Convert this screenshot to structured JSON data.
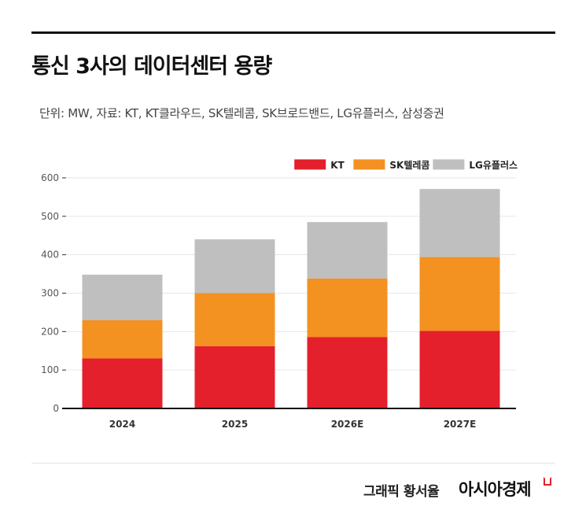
{
  "header": {
    "title": "통신 3사의 데이터센터 용량",
    "subtitle": "단위: MW, 자료: KT, KT클라우드, SK텔레콤, SK브로드밴드, LG유플러스, 삼성증권"
  },
  "footer": {
    "credit": "그래픽  황서율",
    "brand": "아시아경제"
  },
  "chart_data": {
    "type": "bar",
    "stacked": true,
    "categories": [
      "2024",
      "2025",
      "2026E",
      "2027E"
    ],
    "series": [
      {
        "name": "KT",
        "color": "#e4202c",
        "values": [
          130,
          162,
          186,
          202
        ]
      },
      {
        "name": "SK텔레콤",
        "color": "#f39121",
        "values": [
          100,
          138,
          152,
          192
        ]
      },
      {
        "name": "LG유플러스",
        "color": "#bfbfbf",
        "values": [
          118,
          140,
          147,
          177
        ]
      }
    ],
    "ylim": [
      0,
      600
    ],
    "yticks": [
      0,
      100,
      200,
      300,
      400,
      500,
      600
    ],
    "grid": true,
    "legend": "top-right"
  }
}
